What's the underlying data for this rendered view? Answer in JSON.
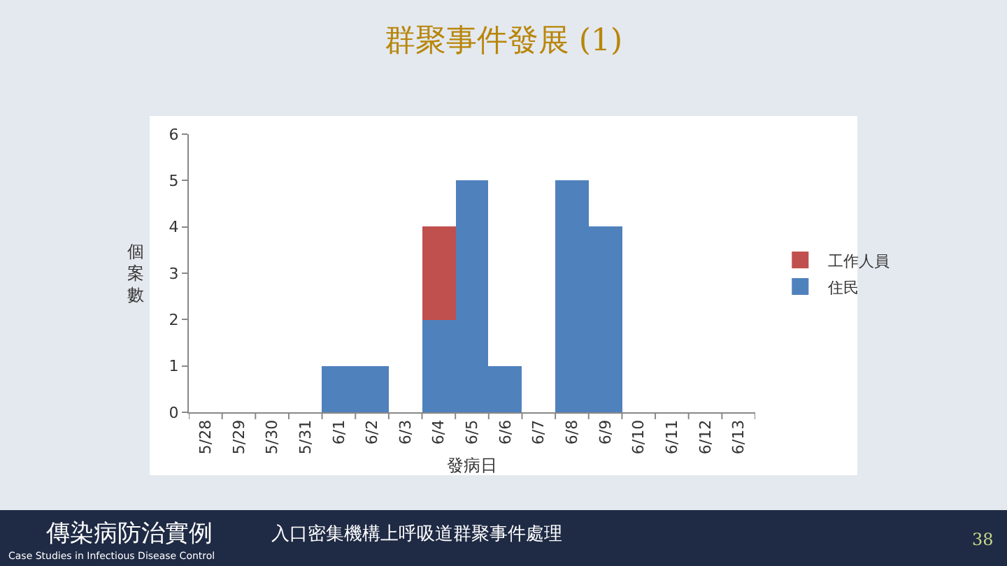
{
  "chart_data": {
    "type": "bar",
    "title": "群聚事件發展 (1)",
    "xlabel": "發病日",
    "ylabel": "個案數",
    "categories": [
      "5/28",
      "5/29",
      "5/30",
      "5/31",
      "6/1",
      "6/2",
      "6/3",
      "6/4",
      "6/5",
      "6/6",
      "6/7",
      "6/8",
      "6/9",
      "6/10",
      "6/11",
      "6/12",
      "6/13"
    ],
    "series": [
      {
        "name": "住民",
        "color": "#4f81bd",
        "values": [
          0,
          0,
          0,
          0,
          1,
          1,
          0,
          2,
          5,
          1,
          0,
          5,
          4,
          0,
          0,
          0,
          0
        ]
      },
      {
        "name": "工作人員",
        "color": "#c0504d",
        "values": [
          0,
          0,
          0,
          0,
          0,
          0,
          0,
          2,
          0,
          0,
          0,
          0,
          0,
          0,
          0,
          0,
          0
        ]
      }
    ],
    "stacked": true,
    "ylim": [
      0,
      6
    ],
    "yticks": [
      0,
      1,
      2,
      3,
      4,
      5,
      6
    ],
    "legend": "right",
    "annotations": [
      "傳染病防治實例",
      "入口密集機構上呼吸道群聚事件處理",
      "Case Studies in Infectious Disease Control",
      "38"
    ]
  }
}
